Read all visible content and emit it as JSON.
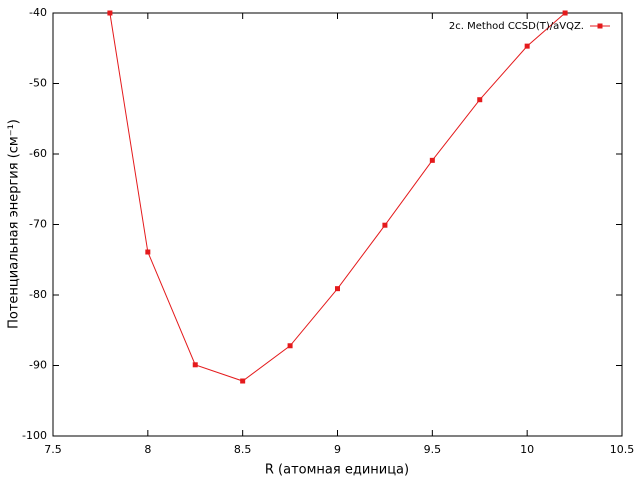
{
  "chart_data": {
    "type": "line",
    "xlabel": "R (атомная единица)",
    "ylabel": "Потенциальная энергия (см⁻¹)",
    "x": [
      7.8,
      8.0,
      8.25,
      8.5,
      8.75,
      9.0,
      9.25,
      9.5,
      9.75,
      10.0,
      10.2
    ],
    "series": [
      {
        "name": "2c. Method CCSD(T)/aVQZ.",
        "color": "#e41a1c",
        "values": [
          -40,
          -73.9,
          -89.9,
          -92.2,
          -87.2,
          -79.1,
          -70.1,
          -60.9,
          -52.3,
          -44.7,
          -40
        ]
      }
    ],
    "xlim": [
      7.5,
      10.5
    ],
    "xticks": [
      7.5,
      8,
      8.5,
      9,
      9.5,
      10,
      10.5
    ],
    "ylim": [
      -100,
      -40
    ],
    "yticks": [
      -100,
      -90,
      -80,
      -70,
      -60,
      -50,
      -40
    ],
    "grid": false,
    "legend": "top-right"
  }
}
